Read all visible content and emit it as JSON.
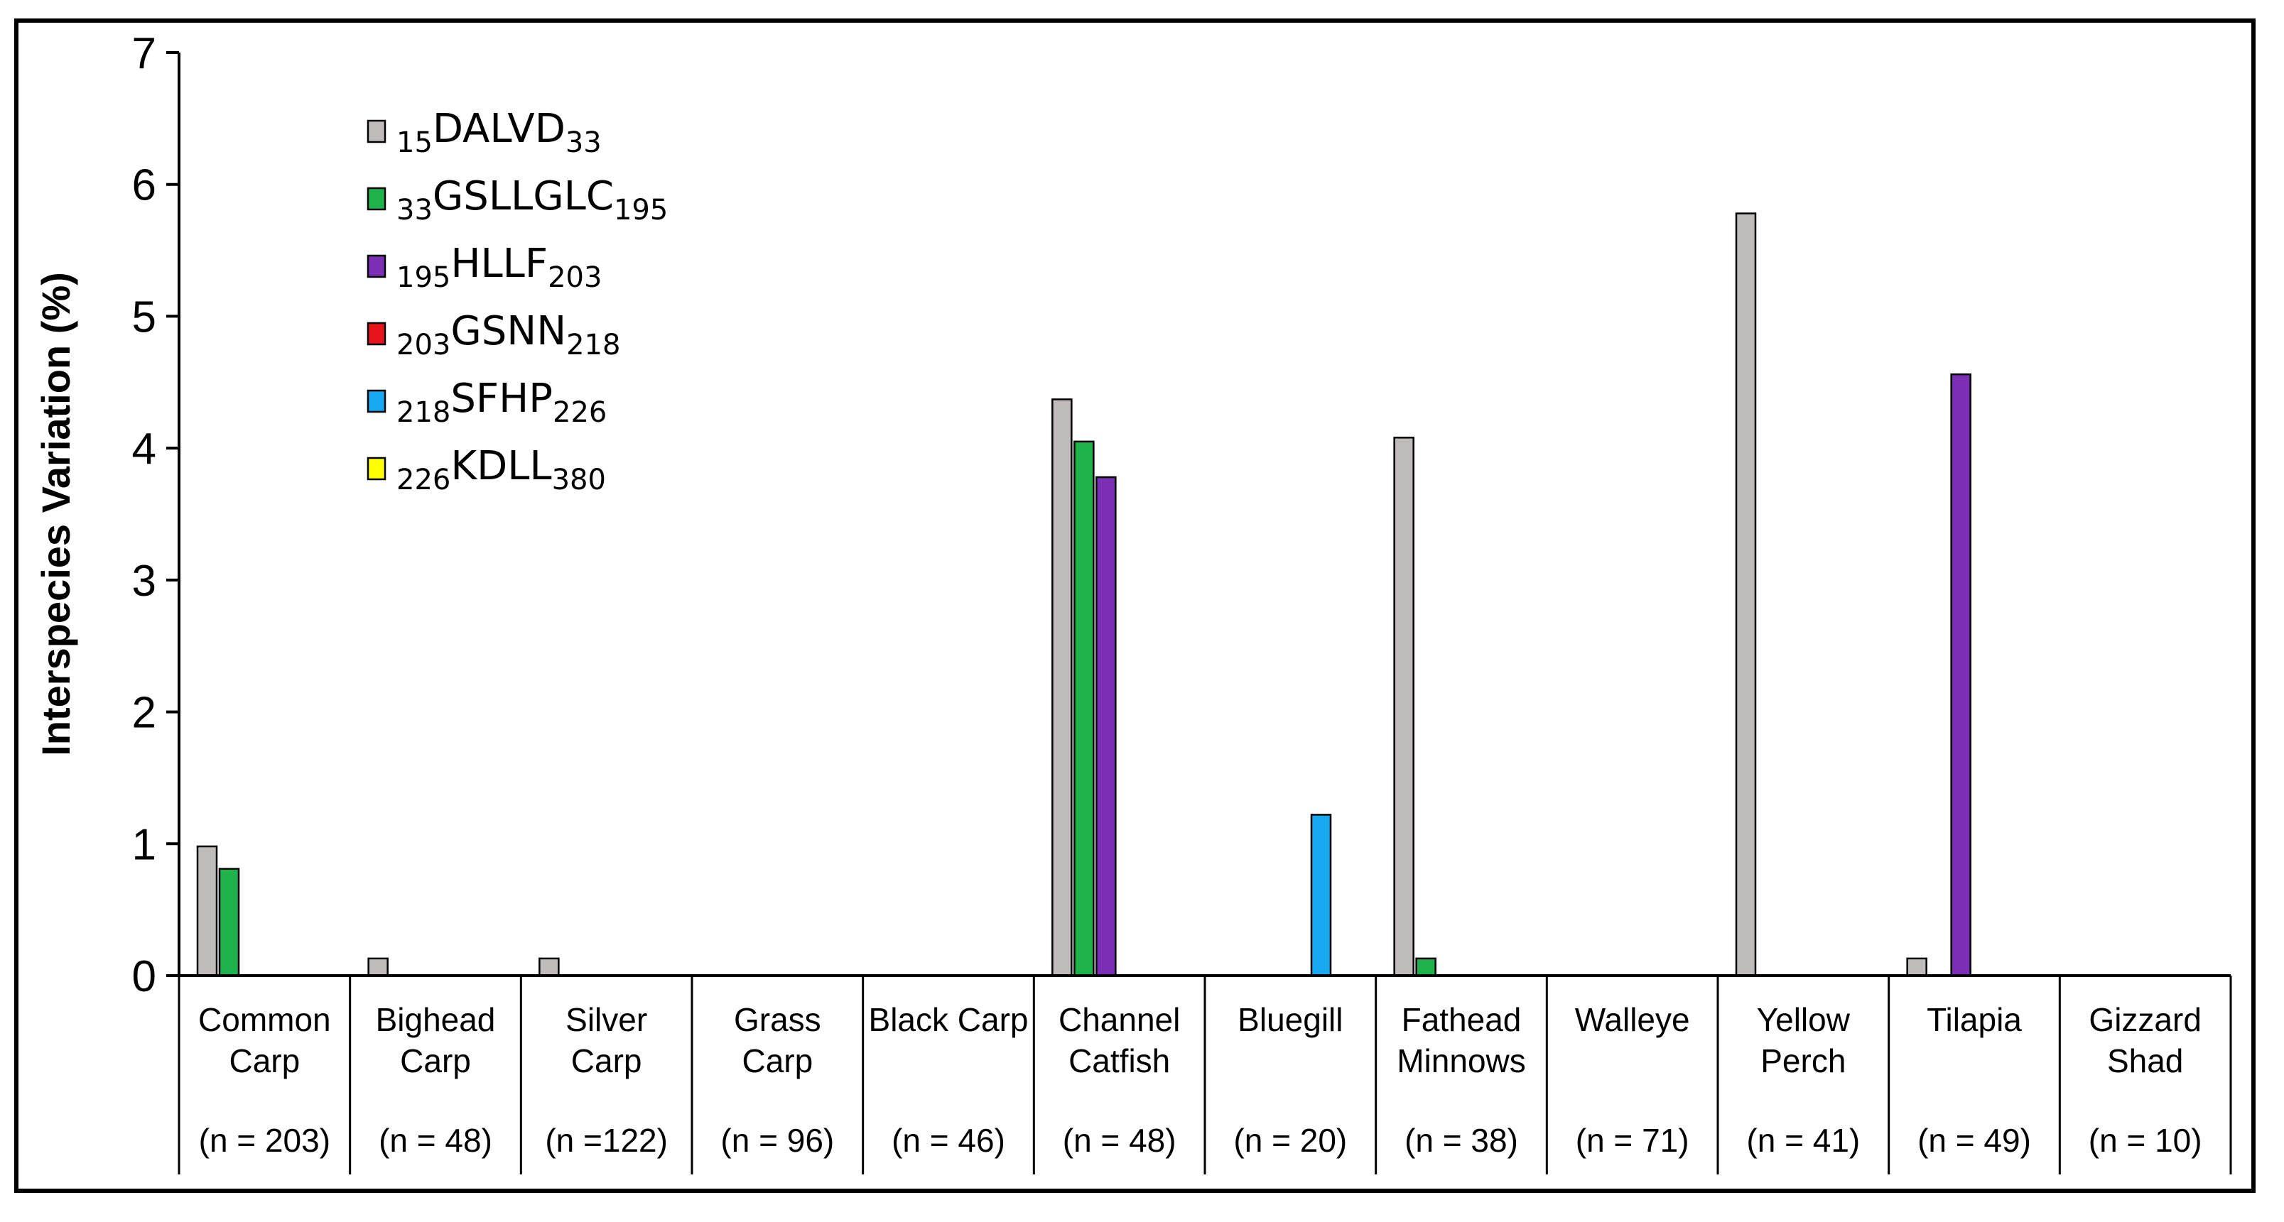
{
  "chart_data": {
    "type": "bar",
    "ylabel": "Interspecies Variation (%)",
    "xlabel": "",
    "ylim": [
      0,
      7
    ],
    "yticks": [
      0,
      1,
      2,
      3,
      4,
      5,
      6,
      7
    ],
    "grid": false,
    "legend_position": "top-left",
    "categories": [
      {
        "line1": "Common",
        "line2": "Carp",
        "n": "(n =  203)"
      },
      {
        "line1": "Bighead",
        "line2": "Carp",
        "n": "(n = 48)"
      },
      {
        "line1": "Silver",
        "line2": "Carp",
        "n": "(n =122)"
      },
      {
        "line1": "Grass",
        "line2": "Carp",
        "n": "(n = 96)"
      },
      {
        "line1": "Black Carp",
        "line2": "",
        "n": "(n = 46)"
      },
      {
        "line1": "Channel",
        "line2": "Catfish",
        "n": "(n = 48)"
      },
      {
        "line1": "Bluegill",
        "line2": "",
        "n": "(n = 20)"
      },
      {
        "line1": "Fathead",
        "line2": "Minnows",
        "n": "(n = 38)"
      },
      {
        "line1": "Walleye",
        "line2": "",
        "n": "(n = 71)"
      },
      {
        "line1": "Yellow",
        "line2": "Perch",
        "n": "(n = 41)"
      },
      {
        "line1": "Tilapia",
        "line2": "",
        "n": "(n = 49)"
      },
      {
        "line1": "Gizzard",
        "line2": "Shad",
        "n": "(n = 10)"
      }
    ],
    "series": [
      {
        "pre": "15",
        "name": "DALVD",
        "post": "33",
        "color": "#bfbbbb",
        "values": [
          0.98,
          0.13,
          0.13,
          0,
          0,
          4.37,
          0,
          4.08,
          0,
          5.78,
          0.13,
          0
        ]
      },
      {
        "pre": "33",
        "name": "GSLLGLC",
        "post": "195",
        "color": "#1fb24a",
        "values": [
          0.81,
          0,
          0,
          0,
          0,
          4.05,
          0,
          0.13,
          0,
          0,
          0,
          0
        ]
      },
      {
        "pre": "195",
        "name": "HLLF",
        "post": "203",
        "color": "#7b2fb5",
        "values": [
          0,
          0,
          0,
          0,
          0,
          3.78,
          0,
          0,
          0,
          0,
          4.56,
          0
        ]
      },
      {
        "pre": "203",
        "name": "GSNN",
        "post": "218",
        "color": "#e8141b",
        "values": [
          0,
          0,
          0,
          0,
          0,
          0,
          0,
          0,
          0,
          0,
          0,
          0
        ]
      },
      {
        "pre": "218",
        "name": "SFHP",
        "post": "226",
        "color": "#16a9f0",
        "values": [
          0,
          0,
          0,
          0,
          0,
          0,
          1.22,
          0,
          0,
          0,
          0,
          0
        ]
      },
      {
        "pre": "226",
        "name": "KDLL",
        "post": "380",
        "color": "#ffff00",
        "values": [
          0,
          0,
          0,
          0,
          0,
          0,
          0,
          0,
          0,
          0,
          0,
          0
        ]
      }
    ]
  }
}
